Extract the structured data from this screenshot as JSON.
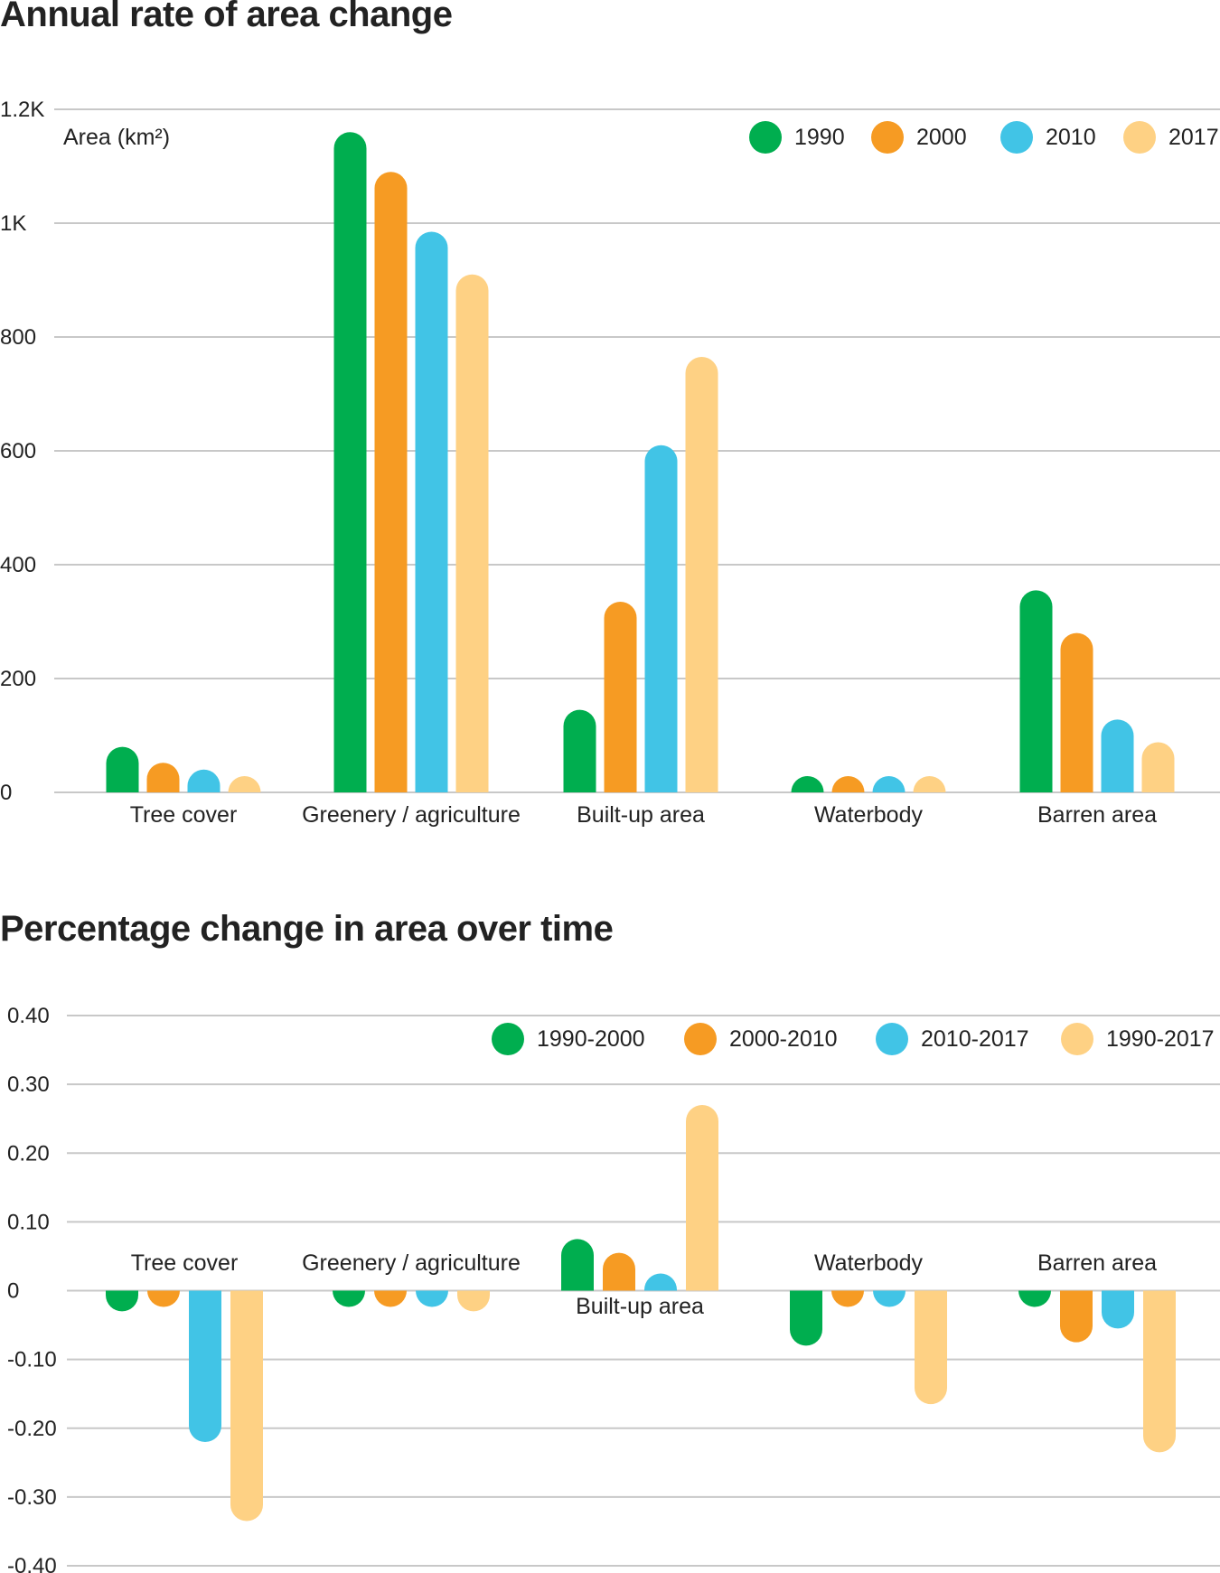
{
  "colors": {
    "green": "#00ae4f",
    "orange": "#f69b23",
    "blue": "#41c4e6",
    "peach": "#fed184",
    "grid": "#c8c8c8"
  },
  "chart_data": [
    {
      "type": "bar",
      "title": "Annual rate of area change",
      "ylabel": "Area (km²)",
      "xlabel": "",
      "ylim": [
        0,
        1200
      ],
      "y_ticks": [
        0,
        200,
        400,
        600,
        800,
        1000,
        1200
      ],
      "y_tick_labels": [
        "0",
        "200",
        "400",
        "600",
        "800",
        "1K",
        "1.2K"
      ],
      "grid": true,
      "legend_position": "top-right",
      "categories": [
        "Tree cover",
        "Greenery / agriculture",
        "Built-up area",
        "Waterbody",
        "Barren area"
      ],
      "series": [
        {
          "name": "1990",
          "color": "#00ae4f",
          "values": [
            80,
            1160,
            145,
            25,
            355
          ]
        },
        {
          "name": "2000",
          "color": "#f69b23",
          "values": [
            52,
            1090,
            335,
            8,
            280
          ]
        },
        {
          "name": "2010",
          "color": "#41c4e6",
          "values": [
            40,
            985,
            610,
            8,
            128
          ]
        },
        {
          "name": "2017",
          "color": "#fed184",
          "values": [
            10,
            910,
            765,
            10,
            88
          ]
        }
      ]
    },
    {
      "type": "bar",
      "title": "Percentage change in area over time",
      "xlabel": "",
      "ylabel": "",
      "ylim": [
        -0.4,
        0.4
      ],
      "y_ticks": [
        -0.4,
        -0.3,
        -0.2,
        -0.1,
        0,
        0.1,
        0.2,
        0.3,
        0.4
      ],
      "y_tick_labels": [
        "-0.40",
        "-0.30",
        "-0.20",
        "-0.10",
        "0",
        "0.10",
        "0.20",
        "0.30",
        "0.40"
      ],
      "grid": true,
      "legend_position": "top-right",
      "categories": [
        "Tree cover",
        "Greenery / agriculture",
        "Built-up area",
        "Waterbody",
        "Barren area"
      ],
      "series": [
        {
          "name": "1990-2000",
          "color": "#00ae4f",
          "values": [
            -0.03,
            -0.002,
            0.075,
            -0.08,
            -0.01
          ]
        },
        {
          "name": "2000-2010",
          "color": "#f69b23",
          "values": [
            -0.01,
            -0.005,
            0.055,
            -0.005,
            -0.075
          ]
        },
        {
          "name": "2010-2017",
          "color": "#41c4e6",
          "values": [
            -0.22,
            -0.005,
            0.025,
            0,
            -0.055
          ]
        },
        {
          "name": "1990-2017",
          "color": "#fed184",
          "values": [
            -0.335,
            -0.03,
            0.27,
            -0.165,
            -0.235
          ]
        }
      ]
    }
  ]
}
